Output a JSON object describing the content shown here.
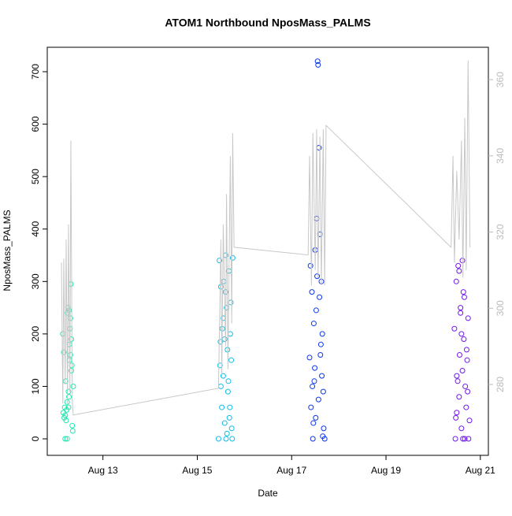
{
  "chart_data": {
    "type": "scatter",
    "title": "ATOM1 Northbound NposMass_PALMS",
    "x_label": "Date",
    "y_label": "NposMass_PALMS",
    "xlim": [
      11.82,
      21.17
    ],
    "ylim": [
      -31.5,
      746.6
    ],
    "y2lim": [
      261.4,
      368.5
    ],
    "xticks": [
      {
        "value": 13,
        "label": "Aug 13"
      },
      {
        "value": 15,
        "label": "Aug 15"
      },
      {
        "value": 17,
        "label": "Aug 17"
      },
      {
        "value": 19,
        "label": "Aug 19"
      },
      {
        "value": 21,
        "label": "Aug 21"
      }
    ],
    "yticks": [
      0,
      100,
      200,
      300,
      400,
      500,
      600,
      700
    ],
    "y2ticks": [
      280,
      300,
      320,
      340,
      360
    ],
    "y2color": "#bbbbbb",
    "series": [
      {
        "color": "#1ee8b0",
        "x": [
          12.15,
          12.17,
          12.19,
          12.2,
          12.21,
          12.22,
          12.23,
          12.24,
          12.25,
          12.26,
          12.27,
          12.28,
          12.29,
          12.3,
          12.31,
          12.32,
          12.33,
          12.34,
          12.35,
          12.36,
          12.37,
          12.16,
          12.18,
          12.27,
          12.29,
          12.31,
          12.33,
          12.2,
          12.24,
          12.28
        ],
        "values": [
          200,
          165,
          60,
          45,
          110,
          35,
          55,
          70,
          240,
          250,
          90,
          80,
          150,
          210,
          230,
          295,
          190,
          140,
          25,
          15,
          100,
          50,
          40,
          60,
          180,
          160,
          130,
          0,
          0,
          245
        ]
      },
      {
        "color": "#12bde8",
        "x": [
          15.45,
          15.47,
          15.49,
          15.5,
          15.52,
          15.53,
          15.55,
          15.56,
          15.58,
          15.6,
          15.61,
          15.62,
          15.64,
          15.65,
          15.67,
          15.68,
          15.7,
          15.72,
          15.74,
          15.75,
          15.5,
          15.55,
          15.6,
          15.63,
          15.66,
          15.69,
          15.71,
          15.73,
          15.48,
          15.58
        ],
        "values": [
          0,
          340,
          185,
          290,
          60,
          210,
          120,
          300,
          30,
          350,
          0,
          250,
          170,
          90,
          320,
          40,
          200,
          150,
          0,
          345,
          100,
          230,
          280,
          10,
          110,
          60,
          260,
          20,
          140,
          190
        ]
      },
      {
        "color": "#0a36ee",
        "x": [
          17.38,
          17.4,
          17.41,
          17.43,
          17.45,
          17.47,
          17.48,
          17.5,
          17.51,
          17.53,
          17.55,
          17.56,
          17.58,
          17.6,
          17.61,
          17.63,
          17.65,
          17.67,
          17.68,
          17.7,
          17.52,
          17.54,
          17.49,
          17.57,
          17.62,
          17.44,
          17.46,
          17.59,
          17.64,
          17.66
        ],
        "values": [
          155,
          330,
          60,
          280,
          0,
          220,
          110,
          360,
          40,
          420,
          720,
          713,
          555,
          390,
          160,
          300,
          200,
          90,
          20,
          0,
          245,
          310,
          135,
          75,
          180,
          100,
          30,
          270,
          120,
          5
        ]
      },
      {
        "color": "#7318ec",
        "x": [
          20.45,
          20.47,
          20.49,
          20.5,
          20.52,
          20.53,
          20.55,
          20.56,
          20.58,
          20.6,
          20.62,
          20.63,
          20.65,
          20.66,
          20.68,
          20.7,
          20.72,
          20.74,
          20.75,
          20.77,
          20.5,
          20.55,
          20.6,
          20.64,
          20.67,
          20.71,
          20.73,
          20.48,
          20.58,
          20.62
        ],
        "values": [
          210,
          0,
          300,
          50,
          110,
          330,
          80,
          160,
          250,
          20,
          340,
          0,
          190,
          270,
          100,
          60,
          150,
          230,
          0,
          35,
          120,
          320,
          200,
          280,
          0,
          170,
          90,
          40,
          240,
          130
        ]
      },
      {
        "axis": "y2",
        "color": "#c8c8c8",
        "x": [
          12.12,
          12.15,
          12.17,
          12.2,
          12.22,
          12.25,
          12.27,
          12.3,
          12.32,
          12.35,
          12.37,
          15.45,
          15.5,
          15.52,
          15.55,
          15.6,
          15.62,
          15.65,
          15.7,
          15.73,
          15.75,
          15.78,
          17.35,
          17.38,
          17.42,
          17.45,
          17.5,
          17.53,
          17.56,
          17.6,
          17.63,
          17.67,
          17.7,
          17.73,
          20.38,
          20.42,
          20.45,
          20.5,
          20.55,
          20.6,
          20.63,
          20.67,
          20.7,
          20.74,
          20.78
        ],
        "values": [
          312,
          275,
          313,
          280,
          318,
          274,
          322,
          278,
          344,
          276,
          272,
          279,
          318,
          282,
          322,
          290,
          330,
          284,
          340,
          296,
          346,
          316,
          314,
          340,
          306,
          346,
          310,
          347,
          308,
          345,
          306,
          347,
          306,
          348,
          316,
          340,
          312,
          336,
          318,
          344,
          308,
          350,
          310,
          365,
          316
        ]
      }
    ]
  }
}
